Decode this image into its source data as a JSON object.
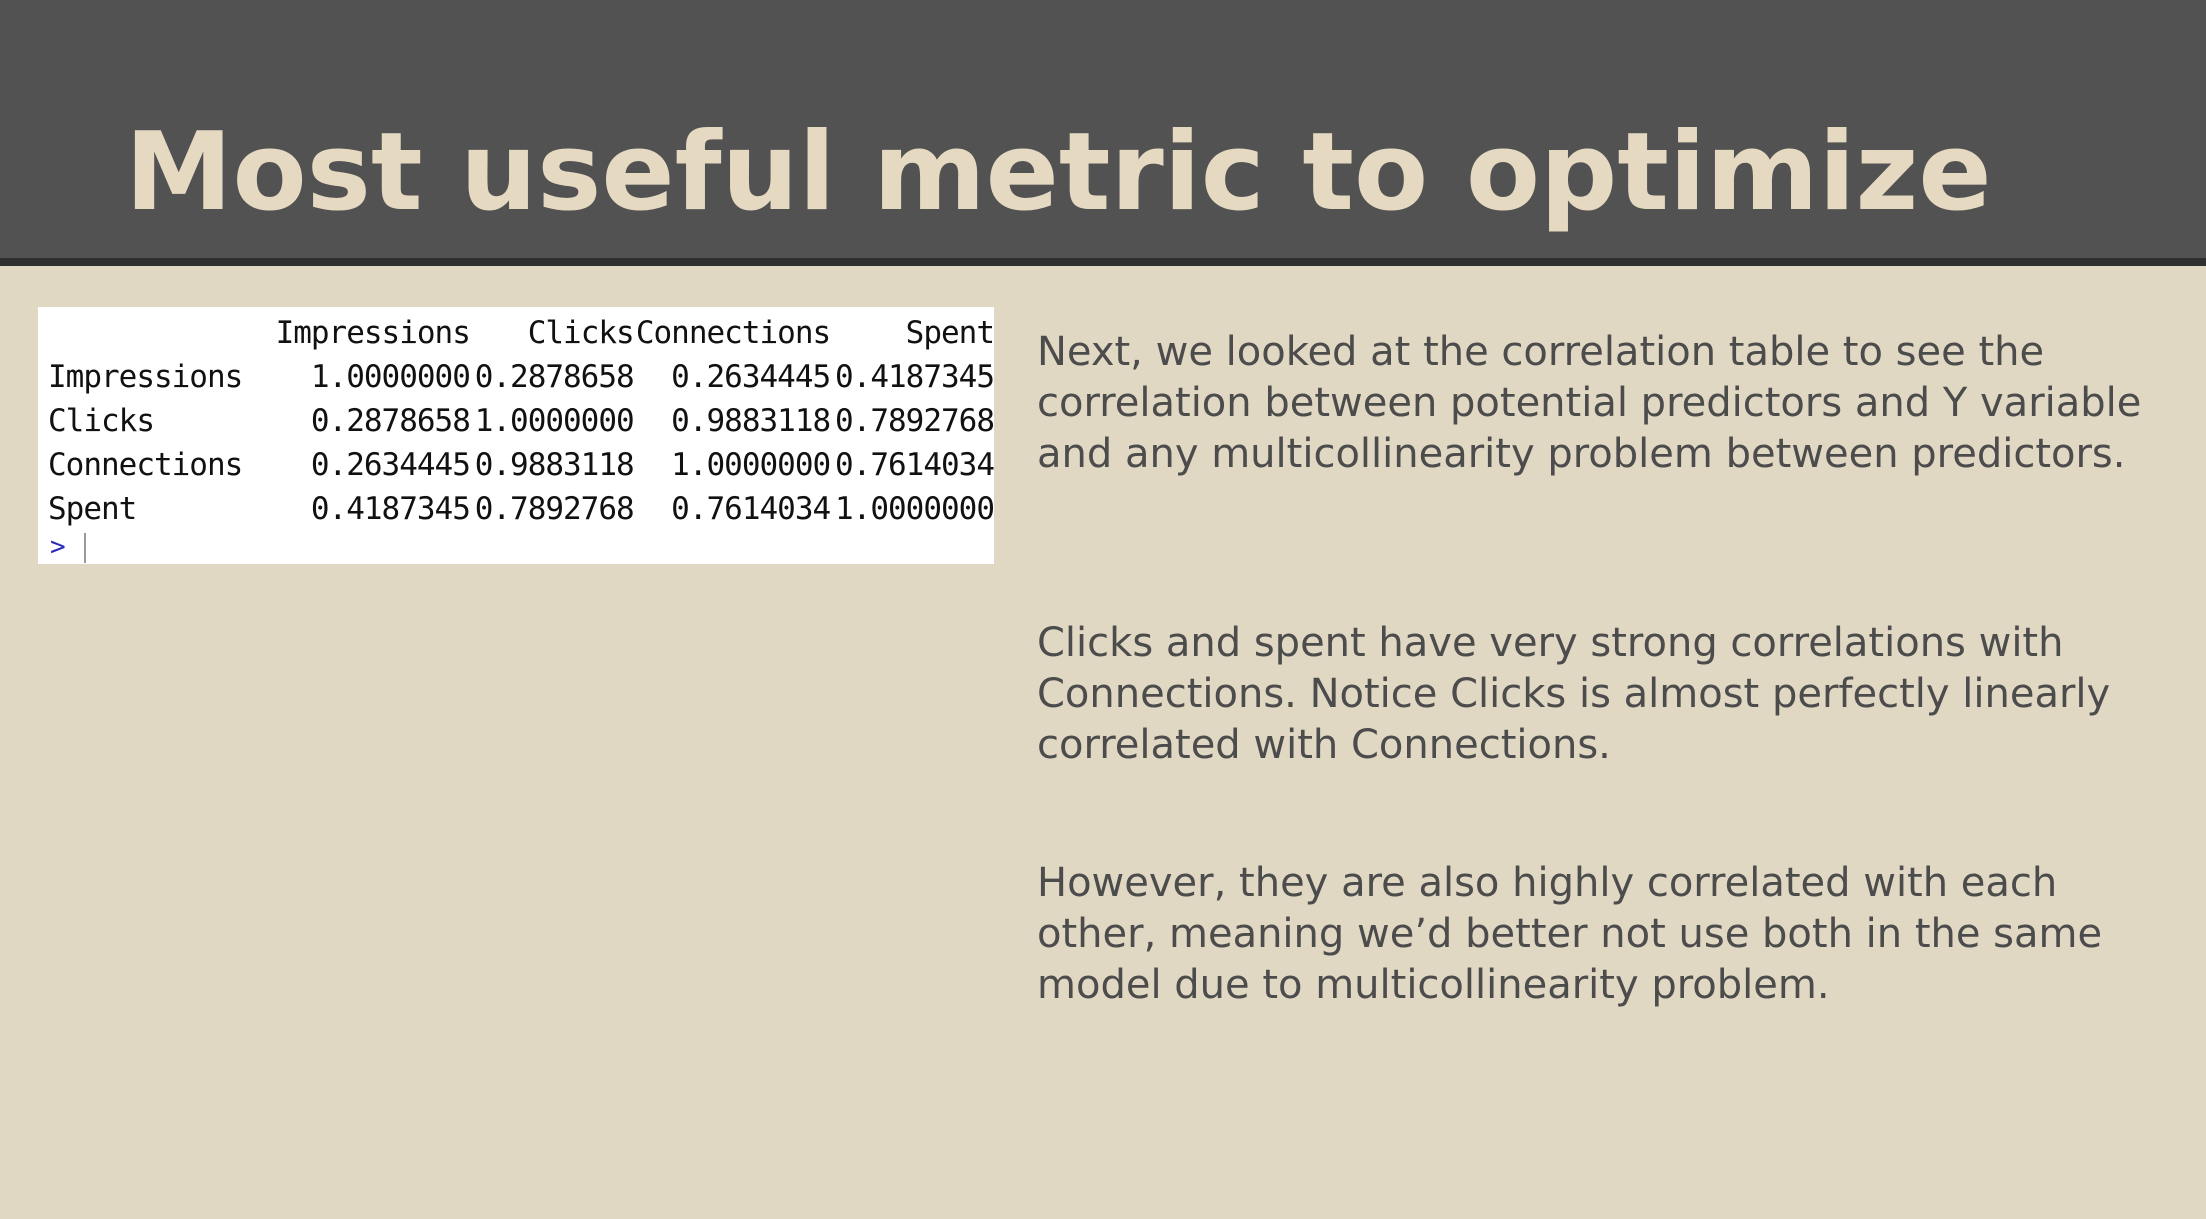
{
  "slide": {
    "title": "Most useful metric to optimize",
    "colors": {
      "background": "#e1d8c4",
      "title_bar": "#525252",
      "title_text": "#e5d9c2",
      "body_text": "#4c4c4c"
    }
  },
  "correlation_table": {
    "columns": [
      "Impressions",
      "Clicks",
      "Connections",
      "Spent"
    ],
    "rows": [
      {
        "name": "Impressions",
        "values": [
          "1.0000000",
          "0.2878658",
          "0.2634445",
          "0.4187345"
        ]
      },
      {
        "name": "Clicks",
        "values": [
          "0.2878658",
          "1.0000000",
          "0.9883118",
          "0.7892768"
        ]
      },
      {
        "name": "Connections",
        "values": [
          "0.2634445",
          "0.9883118",
          "1.0000000",
          "0.7614034"
        ]
      },
      {
        "name": "Spent",
        "values": [
          "0.4187345",
          "0.7892768",
          "0.7614034",
          "1.0000000"
        ]
      }
    ],
    "prompt": ">"
  },
  "paragraphs": [
    "Next, we looked at the correlation table to see the correlation between potential predictors and Y variable and any multicollinearity problem between predictors.",
    "Clicks and spent have very strong correlations with Connections. Notice Clicks is almost perfectly linearly correlated with Connections.",
    "However, they are also highly correlated with each other, meaning we’d better not use both in the same model due to multicollinearity problem."
  ]
}
